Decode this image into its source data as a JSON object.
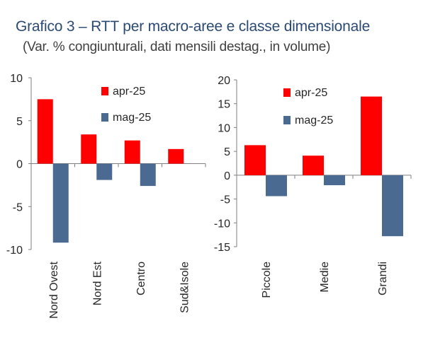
{
  "header": {
    "title": "Grafico 3 – RTT per macro-aree e classe dimensionale",
    "subtitle": "(Var. % congiunturali, dati mensili destag., in volume)"
  },
  "colors": {
    "apr": "#ff0000",
    "mag": "#4a6a92",
    "axis": "#7f7f7f"
  },
  "chart_data": [
    {
      "type": "bar",
      "categories": [
        "Nord Ovest",
        "Nord Est",
        "Centro",
        "Sud&Isole"
      ],
      "series": [
        {
          "name": "apr-25",
          "values": [
            7.5,
            3.4,
            2.7,
            1.7
          ]
        },
        {
          "name": "mag-25",
          "values": [
            -9.2,
            -1.9,
            -2.6,
            0
          ]
        }
      ],
      "yticks": [
        "10",
        "5",
        "0",
        "-5",
        "-10"
      ],
      "ylim": [
        -10,
        10
      ],
      "legend": "top-right",
      "grid": false
    },
    {
      "type": "bar",
      "categories": [
        "Piccole",
        "Medie",
        "Grandi"
      ],
      "series": [
        {
          "name": "apr-25",
          "values": [
            6.3,
            4.1,
            16.5
          ]
        },
        {
          "name": "mag-25",
          "values": [
            -4.4,
            -2.1,
            -12.8
          ]
        }
      ],
      "yticks": [
        "20",
        "15",
        "10",
        "5",
        "0",
        "-5",
        "-10",
        "-15"
      ],
      "ylim": [
        -15,
        20
      ],
      "legend": "top-right",
      "grid": false
    }
  ]
}
